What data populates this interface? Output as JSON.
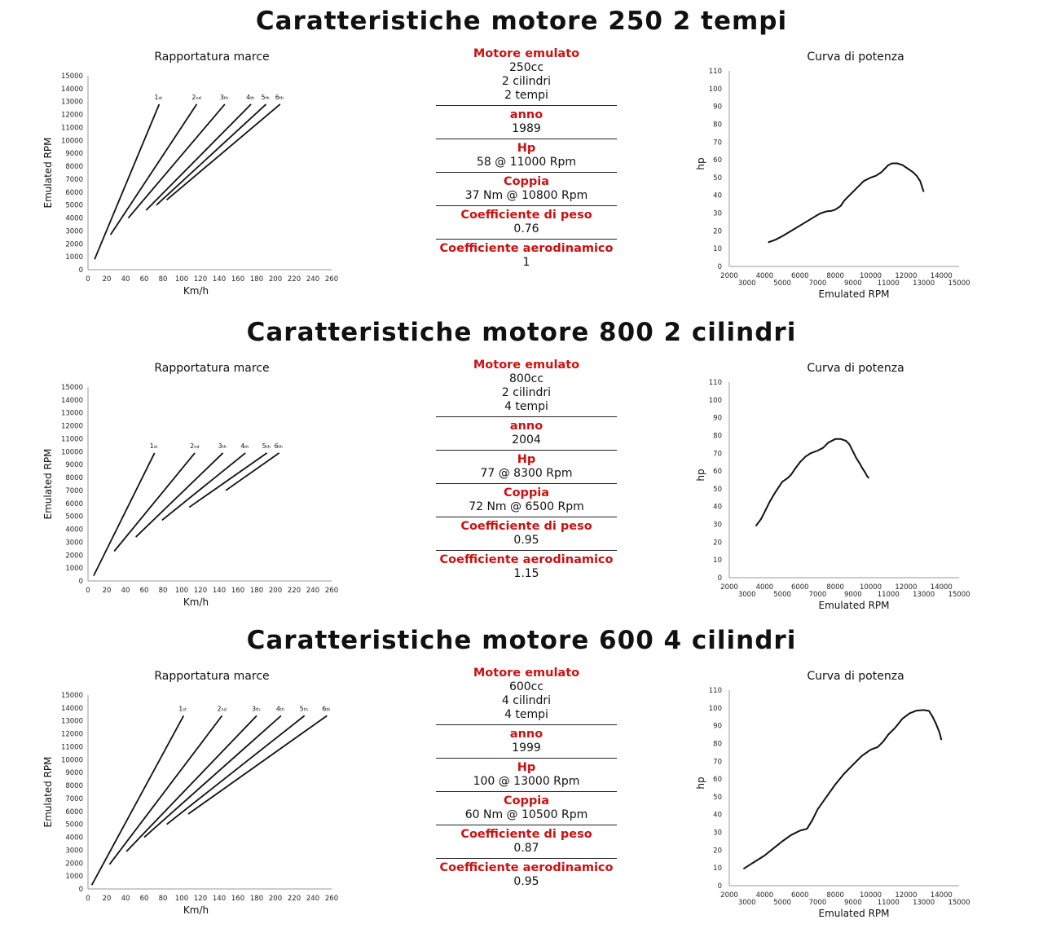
{
  "colors": {
    "accent": "#cc1111",
    "line": "#111111"
  },
  "sections": [
    {
      "title": "Caratteristiche motore 250 2 tempi",
      "gear_title": "Rapportatura marce",
      "power_title": "Curva di potenza",
      "specs": [
        {
          "label": "Motore emulato",
          "values": [
            "250cc",
            "2 cilindri",
            "2 tempi"
          ]
        },
        {
          "label": "anno",
          "values": [
            "1989"
          ]
        },
        {
          "label": "Hp",
          "values": [
            "58 @ 11000 Rpm"
          ]
        },
        {
          "label": "Coppia",
          "values": [
            "37 Nm @ 10800 Rpm"
          ]
        },
        {
          "label": "Coefficiente di peso",
          "values": [
            "0.76"
          ]
        },
        {
          "label": "Coefficiente aerodinamico",
          "values": [
            "1"
          ]
        }
      ]
    },
    {
      "title": "Caratteristiche motore 800 2 cilindri",
      "gear_title": "Rapportatura marce",
      "power_title": "Curva di potenza",
      "specs": [
        {
          "label": "Motore emulato",
          "values": [
            "800cc",
            "2 cilindri",
            "4 tempi"
          ]
        },
        {
          "label": "anno",
          "values": [
            "2004"
          ]
        },
        {
          "label": "Hp",
          "values": [
            "77 @ 8300 Rpm"
          ]
        },
        {
          "label": "Coppia",
          "values": [
            "72 Nm @ 6500 Rpm"
          ]
        },
        {
          "label": "Coefficiente di peso",
          "values": [
            "0.95"
          ]
        },
        {
          "label": "Coefficiente aerodinamico",
          "values": [
            "1.15"
          ]
        }
      ]
    },
    {
      "title": "Caratteristiche motore 600 4 cilindri",
      "gear_title": "Rapportatura marce",
      "power_title": "Curva di potenza",
      "specs": [
        {
          "label": "Motore emulato",
          "values": [
            "600cc",
            "4 cilindri",
            "4 tempi"
          ]
        },
        {
          "label": "anno",
          "values": [
            "1999"
          ]
        },
        {
          "label": "Hp",
          "values": [
            "100 @ 13000 Rpm"
          ]
        },
        {
          "label": "Coppia",
          "values": [
            "60 Nm @ 10500 Rpm"
          ]
        },
        {
          "label": "Coefficiente di peso",
          "values": [
            "0.87"
          ]
        },
        {
          "label": "Coefficiente aerodinamico",
          "values": [
            "0.95"
          ]
        }
      ]
    }
  ],
  "chart_data": [
    {
      "type": "line",
      "title": "Rapportatura marce",
      "xlabel": "Km/h",
      "ylabel": "Emulated RPM",
      "xlim": [
        0,
        260
      ],
      "ylim": [
        0,
        15000
      ],
      "xticks": [
        0,
        20,
        40,
        60,
        80,
        100,
        120,
        140,
        160,
        180,
        200,
        220,
        240,
        260
      ],
      "yticks": [
        0,
        1000,
        2000,
        3000,
        4000,
        5000,
        6000,
        7000,
        8000,
        9000,
        10000,
        11000,
        12000,
        13000,
        14000,
        15000
      ],
      "series": [
        {
          "name": "1st",
          "x": [
            7,
            76
          ],
          "y": [
            800,
            12800
          ]
        },
        {
          "name": "2nd",
          "x": [
            24,
            116
          ],
          "y": [
            2700,
            12800
          ]
        },
        {
          "name": "3rd",
          "x": [
            43,
            146
          ],
          "y": [
            4000,
            12800
          ]
        },
        {
          "name": "4th",
          "x": [
            62,
            174
          ],
          "y": [
            4600,
            12800
          ]
        },
        {
          "name": "5th",
          "x": [
            73,
            190
          ],
          "y": [
            5000,
            12800
          ]
        },
        {
          "name": "6th",
          "x": [
            84,
            205
          ],
          "y": [
            5400,
            12800
          ]
        }
      ],
      "gear_labels": [
        {
          "main": "1",
          "sub": "st"
        },
        {
          "main": "2",
          "sub": "nd"
        },
        {
          "main": "3",
          "sub": "th"
        },
        {
          "main": "4",
          "sub": "th"
        },
        {
          "main": "5",
          "sub": "th"
        },
        {
          "main": "6",
          "sub": "th"
        }
      ]
    },
    {
      "type": "line",
      "title": "Curva di potenza",
      "xlabel": "Emulated RPM",
      "ylabel": "hp",
      "xlim": [
        2000,
        15000
      ],
      "ylim": [
        0,
        110
      ],
      "xticks_upper": [
        2000,
        4000,
        6000,
        8000,
        10000,
        12000,
        14000
      ],
      "xticks_lower": [
        3000,
        5000,
        7000,
        9000,
        11000,
        13000,
        15000
      ],
      "yticks": [
        0,
        10,
        20,
        30,
        40,
        50,
        60,
        70,
        80,
        90,
        100,
        110
      ],
      "series": [
        {
          "name": "hp",
          "x": [
            4200,
            4600,
            5000,
            5500,
            6000,
            6500,
            7000,
            7200,
            7500,
            7800,
            8000,
            8300,
            8500,
            8800,
            9000,
            9300,
            9600,
            10000,
            10300,
            10600,
            10800,
            11000,
            11200,
            11500,
            11800,
            12100,
            12400,
            12600,
            12800,
            12900,
            13000
          ],
          "y": [
            13.5,
            15,
            17,
            20,
            23,
            26,
            29,
            30,
            31,
            31.3,
            32,
            34,
            37,
            40,
            42,
            45,
            48,
            50,
            51,
            53,
            55,
            57,
            58,
            58,
            57,
            55,
            53,
            51,
            48,
            45,
            42
          ]
        }
      ]
    },
    {
      "type": "line",
      "title": "Rapportatura marce",
      "xlabel": "Km/h",
      "ylabel": "Emulated RPM",
      "xlim": [
        0,
        260
      ],
      "ylim": [
        0,
        15000
      ],
      "xticks": [
        0,
        20,
        40,
        60,
        80,
        100,
        120,
        140,
        160,
        180,
        200,
        220,
        240,
        260
      ],
      "yticks": [
        0,
        1000,
        2000,
        3000,
        4000,
        5000,
        6000,
        7000,
        8000,
        9000,
        10000,
        11000,
        12000,
        13000,
        14000,
        15000
      ],
      "series": [
        {
          "name": "1st",
          "x": [
            6,
            71
          ],
          "y": [
            400,
            9900
          ]
        },
        {
          "name": "2nd",
          "x": [
            28,
            114
          ],
          "y": [
            2300,
            9900
          ]
        },
        {
          "name": "3rd",
          "x": [
            51,
            144
          ],
          "y": [
            3400,
            9900
          ]
        },
        {
          "name": "4th",
          "x": [
            79,
            168
          ],
          "y": [
            4700,
            9900
          ]
        },
        {
          "name": "5th",
          "x": [
            108,
            191
          ],
          "y": [
            5700,
            9900
          ]
        },
        {
          "name": "6th",
          "x": [
            147,
            204
          ],
          "y": [
            7000,
            9900
          ]
        }
      ],
      "gear_labels": [
        {
          "main": "1",
          "sub": "st"
        },
        {
          "main": "2",
          "sub": "nd"
        },
        {
          "main": "3",
          "sub": "th"
        },
        {
          "main": "4",
          "sub": "th"
        },
        {
          "main": "5",
          "sub": "th"
        },
        {
          "main": "6",
          "sub": "th"
        }
      ]
    },
    {
      "type": "line",
      "title": "Curva di potenza",
      "xlabel": "Emulated RPM",
      "ylabel": "hp",
      "xlim": [
        2000,
        15000
      ],
      "ylim": [
        0,
        110
      ],
      "xticks_upper": [
        2000,
        4000,
        6000,
        8000,
        10000,
        12000,
        14000
      ],
      "xticks_lower": [
        3000,
        5000,
        7000,
        9000,
        11000,
        13000,
        15000
      ],
      "yticks": [
        0,
        10,
        20,
        30,
        40,
        50,
        60,
        70,
        80,
        90,
        100,
        110
      ],
      "series": [
        {
          "name": "hp",
          "x": [
            3500,
            3800,
            4000,
            4300,
            4600,
            5000,
            5300,
            5500,
            5700,
            6000,
            6300,
            6600,
            7000,
            7300,
            7600,
            8000,
            8300,
            8600,
            8800,
            9000,
            9200,
            9400,
            9500,
            9700,
            9800,
            9900
          ],
          "y": [
            29,
            33,
            37,
            43,
            48,
            54,
            56,
            58,
            61,
            65,
            68,
            70,
            71.5,
            73,
            76,
            78,
            78,
            77,
            75,
            71,
            67,
            64,
            62,
            59,
            57,
            56
          ]
        }
      ]
    },
    {
      "type": "line",
      "title": "Rapportatura marce",
      "xlabel": "Km/h",
      "ylabel": "Emulated RPM",
      "xlim": [
        0,
        260
      ],
      "ylim": [
        0,
        15000
      ],
      "xticks": [
        0,
        20,
        40,
        60,
        80,
        100,
        120,
        140,
        160,
        180,
        200,
        220,
        240,
        260
      ],
      "yticks": [
        0,
        1000,
        2000,
        3000,
        4000,
        5000,
        6000,
        7000,
        8000,
        9000,
        10000,
        11000,
        12000,
        13000,
        14000,
        15000
      ],
      "series": [
        {
          "name": "1st",
          "x": [
            4,
            102
          ],
          "y": [
            300,
            13400
          ]
        },
        {
          "name": "2nd",
          "x": [
            23,
            143
          ],
          "y": [
            1900,
            13400
          ]
        },
        {
          "name": "3rd",
          "x": [
            41,
            180
          ],
          "y": [
            2900,
            13400
          ]
        },
        {
          "name": "4th",
          "x": [
            60,
            206
          ],
          "y": [
            4000,
            13400
          ]
        },
        {
          "name": "5th",
          "x": [
            84,
            231
          ],
          "y": [
            5000,
            13400
          ]
        },
        {
          "name": "6th",
          "x": [
            107,
            255
          ],
          "y": [
            5800,
            13400
          ]
        }
      ],
      "gear_labels": [
        {
          "main": "1",
          "sub": "st"
        },
        {
          "main": "2",
          "sub": "nd"
        },
        {
          "main": "3",
          "sub": "th"
        },
        {
          "main": "4",
          "sub": "th"
        },
        {
          "main": "5",
          "sub": "th"
        },
        {
          "main": "6",
          "sub": "th"
        }
      ]
    },
    {
      "type": "line",
      "title": "Curva di potenza",
      "xlabel": "Emulated RPM",
      "ylabel": "hp",
      "xlim": [
        2000,
        15000
      ],
      "ylim": [
        0,
        110
      ],
      "xticks_upper": [
        2000,
        4000,
        6000,
        8000,
        10000,
        12000,
        14000
      ],
      "xticks_lower": [
        3000,
        5000,
        7000,
        9000,
        11000,
        13000,
        15000
      ],
      "yticks": [
        0,
        10,
        20,
        30,
        40,
        50,
        60,
        70,
        80,
        90,
        100,
        110
      ],
      "series": [
        {
          "name": "hp",
          "x": [
            2800,
            3200,
            3600,
            4000,
            4500,
            5000,
            5500,
            6000,
            6400,
            6700,
            7000,
            7500,
            8000,
            8500,
            9000,
            9500,
            10000,
            10400,
            10700,
            11000,
            11400,
            11800,
            12200,
            12600,
            13000,
            13300,
            13500,
            13700,
            13900,
            14000
          ],
          "y": [
            9.5,
            12,
            14.5,
            17,
            21,
            25,
            28.5,
            31,
            32,
            37,
            43,
            50,
            57,
            63,
            68,
            73,
            76.5,
            78,
            81,
            85,
            89,
            94,
            97,
            98.5,
            98.8,
            98.3,
            95,
            91,
            86,
            82
          ]
        }
      ]
    }
  ]
}
